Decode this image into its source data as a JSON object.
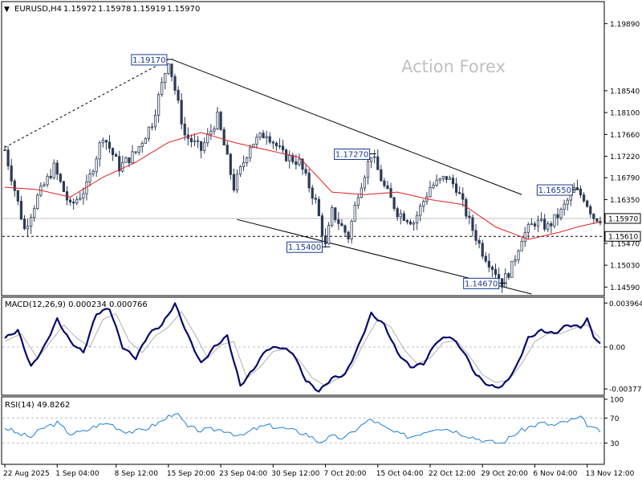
{
  "chart_data": [
    {
      "type": "candlestick",
      "panel": "price",
      "header": {
        "symbol": "EURUSD,H4",
        "open": "1.15972",
        "high": "1.15978",
        "low": "1.15919",
        "close": "1.15970"
      },
      "watermark": "Action Forex",
      "ylim": [
        1.1445,
        1.203
      ],
      "y_ticks": [
        "1.19890",
        "1.18540",
        "1.18100",
        "1.17660",
        "1.17220",
        "1.16790",
        "1.16350",
        "1.15970",
        "1.15470",
        "1.15030",
        "1.14590"
      ],
      "current_price_label": "1.15970",
      "current_price": 1.1597,
      "dashed_level_label": "1.15610",
      "dashed_level": 1.1561,
      "swing_labels": [
        {
          "text": "1.19170",
          "bar": 50,
          "value": 1.1917
        },
        {
          "text": "1.17270",
          "bar": 112,
          "value": 1.1727
        },
        {
          "text": "1.16550",
          "bar": 174,
          "value": 1.1655
        },
        {
          "text": "1.15400",
          "bar": 98,
          "value": 1.154
        },
        {
          "text": "1.14670",
          "bar": 152,
          "value": 1.1467
        }
      ],
      "price_path": [
        [
          0,
          1.1735
        ],
        [
          6,
          1.1575
        ],
        [
          10,
          1.164
        ],
        [
          15,
          1.17
        ],
        [
          20,
          1.162
        ],
        [
          25,
          1.166
        ],
        [
          30,
          1.1765
        ],
        [
          35,
          1.17
        ],
        [
          40,
          1.173
        ],
        [
          45,
          1.179
        ],
        [
          50,
          1.1917
        ],
        [
          55,
          1.1765
        ],
        [
          60,
          1.1735
        ],
        [
          65,
          1.18
        ],
        [
          70,
          1.166
        ],
        [
          75,
          1.1745
        ],
        [
          80,
          1.177
        ],
        [
          85,
          1.1725
        ],
        [
          90,
          1.171
        ],
        [
          95,
          1.163
        ],
        [
          98,
          1.154
        ],
        [
          100,
          1.161
        ],
        [
          105,
          1.156
        ],
        [
          108,
          1.165
        ],
        [
          112,
          1.1727
        ],
        [
          116,
          1.166
        ],
        [
          120,
          1.161
        ],
        [
          125,
          1.159
        ],
        [
          130,
          1.166
        ],
        [
          135,
          1.168
        ],
        [
          138,
          1.166
        ],
        [
          142,
          1.159
        ],
        [
          146,
          1.153
        ],
        [
          150,
          1.149
        ],
        [
          152,
          1.1467
        ],
        [
          155,
          1.15
        ],
        [
          158,
          1.156
        ],
        [
          162,
          1.159
        ],
        [
          166,
          1.158
        ],
        [
          170,
          1.161
        ],
        [
          174,
          1.1655
        ],
        [
          177,
          1.164
        ],
        [
          180,
          1.16
        ],
        [
          182,
          1.1597
        ]
      ],
      "moving_average": [
        [
          0,
          1.166
        ],
        [
          10,
          1.1655
        ],
        [
          20,
          1.164
        ],
        [
          30,
          1.168
        ],
        [
          40,
          1.171
        ],
        [
          50,
          1.175
        ],
        [
          60,
          1.177
        ],
        [
          70,
          1.175
        ],
        [
          80,
          1.1735
        ],
        [
          90,
          1.172
        ],
        [
          100,
          1.165
        ],
        [
          110,
          1.1645
        ],
        [
          120,
          1.165
        ],
        [
          130,
          1.1635
        ],
        [
          140,
          1.1625
        ],
        [
          150,
          1.158
        ],
        [
          160,
          1.1555
        ],
        [
          170,
          1.157
        ],
        [
          175,
          1.158
        ],
        [
          182,
          1.159
        ]
      ],
      "trendlines": [
        {
          "style": "dashed",
          "from": [
            0,
            1.174
          ],
          "to": [
            50,
            1.1917
          ]
        },
        {
          "style": "solid",
          "from": [
            51,
            1.1917
          ],
          "to": [
            158,
            1.1645
          ]
        },
        {
          "style": "solid",
          "from": [
            71,
            1.1595
          ],
          "to": [
            161,
            1.1445
          ]
        }
      ],
      "x_labels": [
        {
          "text": "22 Aug 2025",
          "bar": 0
        },
        {
          "text": "1 Sep 04:00",
          "bar": 16
        },
        {
          "text": "8 Sep 12:00",
          "bar": 34
        },
        {
          "text": "15 Sep 20:00",
          "bar": 50
        },
        {
          "text": "23 Sep 04:00",
          "bar": 66
        },
        {
          "text": "30 Sep 12:00",
          "bar": 82
        },
        {
          "text": "7 Oct 20:00",
          "bar": 98
        },
        {
          "text": "15 Oct 04:00",
          "bar": 114
        },
        {
          "text": "22 Oct 12:00",
          "bar": 130
        },
        {
          "text": "29 Oct 20:00",
          "bar": 146
        },
        {
          "text": "6 Nov 04:00",
          "bar": 162
        },
        {
          "text": "13 Nov 12:00",
          "bar": 178
        }
      ],
      "bar_count": 183
    },
    {
      "type": "line",
      "panel": "macd",
      "title": "MACD(12,26,9) 0.000234 0.000766",
      "ylim": [
        -0.0042,
        0.0042
      ],
      "y_ticks": [
        "0.003964",
        "0.00",
        "-0.003774"
      ],
      "y_tick_values": [
        0.003964,
        0.0,
        -0.003774
      ],
      "zero_label": "0.00",
      "series": [
        {
          "name": "MACD",
          "values": [
            [
              0,
              0.0008
            ],
            [
              4,
              0.0015
            ],
            [
              8,
              -0.0018
            ],
            [
              12,
              0.0
            ],
            [
              16,
              0.0025
            ],
            [
              20,
              0.0005
            ],
            [
              24,
              -0.0005
            ],
            [
              28,
              0.003
            ],
            [
              32,
              0.0035
            ],
            [
              36,
              0.0
            ],
            [
              40,
              -0.001
            ],
            [
              44,
              0.0012
            ],
            [
              48,
              0.002
            ],
            [
              52,
              0.0039
            ],
            [
              56,
              0.001
            ],
            [
              60,
              -0.0015
            ],
            [
              64,
              0.0
            ],
            [
              68,
              0.001
            ],
            [
              72,
              -0.0035
            ],
            [
              76,
              -0.002
            ],
            [
              80,
              -0.0002
            ],
            [
              84,
              0.0
            ],
            [
              88,
              -0.0005
            ],
            [
              92,
              -0.003
            ],
            [
              96,
              -0.004
            ],
            [
              100,
              -0.0028
            ],
            [
              104,
              -0.0025
            ],
            [
              108,
              0.0
            ],
            [
              112,
              0.003
            ],
            [
              116,
              0.002
            ],
            [
              120,
              -0.0005
            ],
            [
              124,
              -0.0018
            ],
            [
              128,
              -0.0015
            ],
            [
              132,
              0.0005
            ],
            [
              136,
              0.001
            ],
            [
              140,
              -0.0003
            ],
            [
              144,
              -0.0025
            ],
            [
              148,
              -0.0035
            ],
            [
              152,
              -0.0036
            ],
            [
              156,
              -0.002
            ],
            [
              160,
              0.0008
            ],
            [
              164,
              0.0015
            ],
            [
              168,
              0.0012
            ],
            [
              172,
              0.002
            ],
            [
              176,
              0.0018
            ],
            [
              178,
              0.0025
            ],
            [
              180,
              0.001
            ],
            [
              182,
              0.0002
            ]
          ]
        },
        {
          "name": "Signal",
          "values": [
            [
              0,
              0.0005
            ],
            [
              5,
              0.0012
            ],
            [
              10,
              -0.001
            ],
            [
              14,
              0.0005
            ],
            [
              18,
              0.002
            ],
            [
              22,
              0.0008
            ],
            [
              26,
              0.0
            ],
            [
              30,
              0.0025
            ],
            [
              34,
              0.003
            ],
            [
              38,
              0.0005
            ],
            [
              42,
              -0.0005
            ],
            [
              46,
              0.001
            ],
            [
              50,
              0.0018
            ],
            [
              54,
              0.0032
            ],
            [
              58,
              0.0012
            ],
            [
              62,
              -0.001
            ],
            [
              66,
              0.0002
            ],
            [
              70,
              0.0005
            ],
            [
              74,
              -0.0028
            ],
            [
              78,
              -0.0018
            ],
            [
              82,
              -0.0004
            ],
            [
              86,
              -0.0002
            ],
            [
              90,
              -0.0012
            ],
            [
              94,
              -0.0028
            ],
            [
              98,
              -0.0035
            ],
            [
              102,
              -0.0028
            ],
            [
              106,
              -0.0018
            ],
            [
              110,
              0.0005
            ],
            [
              114,
              0.0025
            ],
            [
              118,
              0.0018
            ],
            [
              122,
              -0.0002
            ],
            [
              126,
              -0.0015
            ],
            [
              130,
              -0.001
            ],
            [
              134,
              0.0004
            ],
            [
              138,
              0.0006
            ],
            [
              142,
              -0.0008
            ],
            [
              146,
              -0.0025
            ],
            [
              150,
              -0.0032
            ],
            [
              154,
              -0.003
            ],
            [
              158,
              -0.0015
            ],
            [
              162,
              0.0005
            ],
            [
              166,
              0.0012
            ],
            [
              170,
              0.0012
            ],
            [
              174,
              0.0017
            ],
            [
              178,
              0.002
            ],
            [
              182,
              0.0008
            ]
          ]
        }
      ]
    },
    {
      "type": "line",
      "panel": "rsi",
      "title": "RSI(14) 49.8262",
      "ylim": [
        0,
        100
      ],
      "y_ticks": [
        "100",
        "70",
        "30"
      ],
      "y_tick_values": [
        100,
        70,
        30
      ],
      "series": [
        {
          "name": "RSI",
          "values": [
            [
              0,
              55
            ],
            [
              4,
              45
            ],
            [
              8,
              40
            ],
            [
              12,
              55
            ],
            [
              16,
              62
            ],
            [
              20,
              45
            ],
            [
              24,
              48
            ],
            [
              28,
              58
            ],
            [
              32,
              62
            ],
            [
              36,
              50
            ],
            [
              40,
              48
            ],
            [
              44,
              55
            ],
            [
              48,
              65
            ],
            [
              52,
              80
            ],
            [
              56,
              55
            ],
            [
              60,
              50
            ],
            [
              64,
              52
            ],
            [
              68,
              50
            ],
            [
              72,
              40
            ],
            [
              76,
              52
            ],
            [
              80,
              58
            ],
            [
              84,
              55
            ],
            [
              88,
              50
            ],
            [
              92,
              45
            ],
            [
              96,
              32
            ],
            [
              100,
              40
            ],
            [
              104,
              38
            ],
            [
              108,
              55
            ],
            [
              112,
              68
            ],
            [
              116,
              55
            ],
            [
              120,
              45
            ],
            [
              124,
              40
            ],
            [
              128,
              48
            ],
            [
              132,
              55
            ],
            [
              136,
              52
            ],
            [
              140,
              45
            ],
            [
              144,
              38
            ],
            [
              148,
              32
            ],
            [
              152,
              30
            ],
            [
              156,
              45
            ],
            [
              160,
              55
            ],
            [
              164,
              62
            ],
            [
              168,
              58
            ],
            [
              172,
              65
            ],
            [
              176,
              70
            ],
            [
              178,
              60
            ],
            [
              180,
              52
            ],
            [
              182,
              49.8
            ]
          ]
        }
      ]
    }
  ]
}
